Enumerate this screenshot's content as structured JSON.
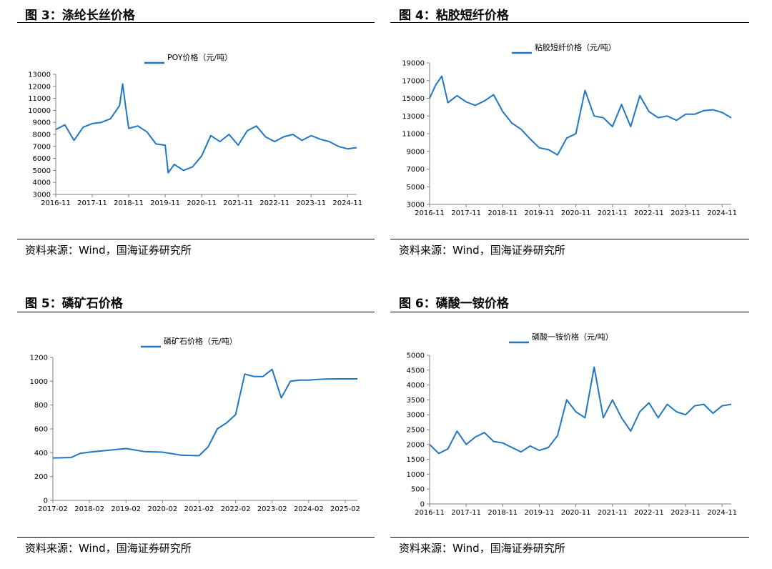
{
  "charts": [
    {
      "heading": "图 3：涤纶长丝价格",
      "source": "资料来源：Wind，国海证券研究所",
      "legend": "POY价格（元/吨）",
      "yticks": [
        "13000",
        "12000",
        "11000",
        "10000",
        "9000",
        "8000",
        "7000",
        "6000",
        "5000",
        "4000",
        "3000"
      ],
      "xticks": [
        "2016-11",
        "2017-11",
        "2018-11",
        "2019-11",
        "2020-11",
        "2021-11",
        "2022-11",
        "2023-11",
        "2024-11"
      ]
    },
    {
      "heading": "图 4：粘胶短纤价格",
      "source": "资料来源：Wind，国海证券研究所",
      "legend": "粘胶短纤价格（元/吨）",
      "yticks": [
        "19000",
        "17000",
        "15000",
        "13000",
        "11000",
        "9000",
        "7000",
        "5000",
        "3000"
      ],
      "xticks": [
        "2016-11",
        "2017-11",
        "2018-11",
        "2019-11",
        "2020-11",
        "2021-11",
        "2022-11",
        "2023-11",
        "2024-11"
      ]
    },
    {
      "heading": "图 5：磷矿石价格",
      "source": "资料来源：Wind，国海证券研究所",
      "legend": "磷矿石价格（元/吨）",
      "yticks": [
        "1200",
        "1000",
        "800",
        "600",
        "400",
        "200",
        "0"
      ],
      "xticks": [
        "2017-02",
        "2018-02",
        "2019-02",
        "2020-02",
        "2021-02",
        "2022-02",
        "2023-02",
        "2024-02",
        "2025-02"
      ]
    },
    {
      "heading": "图 6：磷酸一铵价格",
      "source": "资料来源：Wind，国海证券研究所",
      "legend": "磷酸一铵价格（元/吨）",
      "yticks": [
        "5000",
        "4500",
        "4000",
        "3500",
        "3000",
        "2500",
        "2000",
        "1500",
        "1000",
        "500",
        "0"
      ],
      "xticks": [
        "2016-11",
        "2017-11",
        "2018-11",
        "2019-11",
        "2020-11",
        "2021-11",
        "2022-11",
        "2023-11",
        "2024-11"
      ]
    }
  ],
  "chart_data": [
    {
      "type": "line",
      "title": "",
      "series": [
        {
          "name": "POY价格（元/吨）",
          "color": "#1f77c4",
          "x": [
            "2016-11",
            "2017-02",
            "2017-05",
            "2017-08",
            "2017-11",
            "2018-02",
            "2018-05",
            "2018-08",
            "2018-09",
            "2018-10",
            "2018-11",
            "2019-02",
            "2019-05",
            "2019-08",
            "2019-11",
            "2019-12",
            "2020-02",
            "2020-05",
            "2020-08",
            "2020-11",
            "2021-02",
            "2021-05",
            "2021-08",
            "2021-11",
            "2022-02",
            "2022-05",
            "2022-08",
            "2022-11",
            "2023-02",
            "2023-05",
            "2023-08",
            "2023-11",
            "2024-02",
            "2024-05",
            "2024-08",
            "2024-11",
            "2025-02"
          ],
          "y": [
            8400,
            8800,
            7500,
            8600,
            8900,
            9000,
            9300,
            10400,
            12200,
            10300,
            8500,
            8700,
            8200,
            7200,
            7100,
            4800,
            5500,
            5000,
            5300,
            6200,
            7900,
            7400,
            8000,
            7100,
            8300,
            8700,
            7800,
            7400,
            7800,
            8000,
            7500,
            7900,
            7600,
            7400,
            7000,
            6800,
            6900
          ]
        }
      ],
      "xlim": [
        "2016-11",
        "2025-02"
      ],
      "ylim": [
        3000,
        13000
      ],
      "grid": false,
      "legend_position": "top"
    },
    {
      "type": "line",
      "title": "",
      "series": [
        {
          "name": "粘胶短纤价格（元/吨）",
          "color": "#1f77c4",
          "x": [
            "2016-11",
            "2017-01",
            "2017-03",
            "2017-05",
            "2017-08",
            "2017-11",
            "2018-02",
            "2018-05",
            "2018-08",
            "2018-11",
            "2019-02",
            "2019-05",
            "2019-08",
            "2019-11",
            "2020-02",
            "2020-05",
            "2020-08",
            "2020-11",
            "2021-02",
            "2021-05",
            "2021-08",
            "2021-11",
            "2022-02",
            "2022-05",
            "2022-08",
            "2022-11",
            "2023-02",
            "2023-05",
            "2023-08",
            "2023-11",
            "2024-02",
            "2024-05",
            "2024-08",
            "2024-11",
            "2025-02"
          ],
          "y": [
            15000,
            16500,
            17500,
            14500,
            15300,
            14600,
            14200,
            14700,
            15400,
            13500,
            12200,
            11500,
            10400,
            9400,
            9200,
            8600,
            10500,
            11000,
            15900,
            13000,
            12800,
            11800,
            14300,
            11800,
            15300,
            13500,
            12800,
            13000,
            12500,
            13200,
            13200,
            13600,
            13700,
            13400,
            12800
          ]
        }
      ],
      "xlim": [
        "2016-11",
        "2025-02"
      ],
      "ylim": [
        3000,
        19000
      ],
      "grid": false,
      "legend_position": "top"
    },
    {
      "type": "line",
      "title": "",
      "series": [
        {
          "name": "磷矿石价格（元/吨）",
          "color": "#1f77c4",
          "x": [
            "2017-02",
            "2017-08",
            "2017-11",
            "2018-02",
            "2018-08",
            "2019-02",
            "2019-08",
            "2020-02",
            "2020-08",
            "2021-02",
            "2021-05",
            "2021-08",
            "2021-11",
            "2022-02",
            "2022-05",
            "2022-08",
            "2022-11",
            "2023-02",
            "2023-05",
            "2023-08",
            "2023-11",
            "2024-02",
            "2024-05",
            "2024-08",
            "2024-11",
            "2025-02",
            "2025-06"
          ],
          "y": [
            355,
            360,
            395,
            405,
            420,
            435,
            410,
            405,
            380,
            375,
            450,
            600,
            650,
            720,
            1060,
            1040,
            1040,
            1100,
            860,
            1000,
            1010,
            1010,
            1015,
            1018,
            1020,
            1020,
            1020
          ]
        }
      ],
      "xlim": [
        "2017-02",
        "2025-06"
      ],
      "ylim": [
        0,
        1200
      ],
      "grid": false,
      "legend_position": "top"
    },
    {
      "type": "line",
      "title": "",
      "series": [
        {
          "name": "磷酸一铵价格（元/吨）",
          "color": "#1f77c4",
          "x": [
            "2016-11",
            "2017-02",
            "2017-05",
            "2017-08",
            "2017-11",
            "2018-02",
            "2018-05",
            "2018-08",
            "2018-11",
            "2019-02",
            "2019-05",
            "2019-08",
            "2019-11",
            "2020-02",
            "2020-05",
            "2020-08",
            "2020-11",
            "2021-02",
            "2021-05",
            "2021-08",
            "2021-11",
            "2022-02",
            "2022-05",
            "2022-08",
            "2022-11",
            "2023-02",
            "2023-05",
            "2023-08",
            "2023-11",
            "2024-02",
            "2024-05",
            "2024-08",
            "2024-11",
            "2025-02"
          ],
          "y": [
            2000,
            1700,
            1850,
            2450,
            2000,
            2250,
            2400,
            2100,
            2050,
            1900,
            1750,
            1950,
            1800,
            1900,
            2300,
            3500,
            3100,
            2900,
            4600,
            2900,
            3500,
            2900,
            2450,
            3100,
            3400,
            2900,
            3350,
            3100,
            3000,
            3300,
            3350,
            3050,
            3300,
            3350
          ]
        }
      ],
      "xlim": [
        "2016-11",
        "2025-02"
      ],
      "ylim": [
        0,
        5000
      ],
      "grid": false,
      "legend_position": "top"
    }
  ]
}
